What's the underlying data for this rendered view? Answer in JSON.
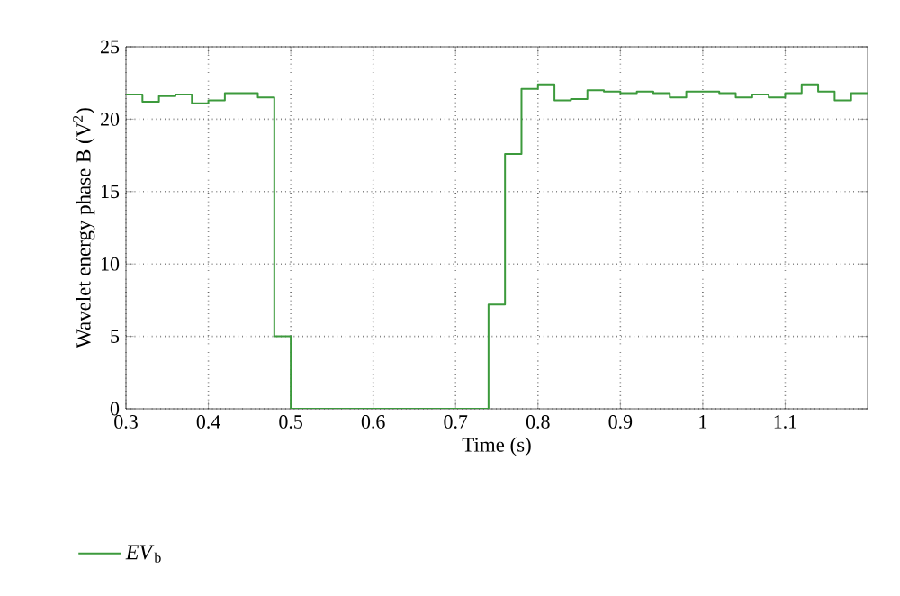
{
  "chart_data": {
    "type": "step",
    "xlabel": "Time (s)",
    "ylabel": "Wavelet energy phase B (V$^{2}$)",
    "x": [
      0.3,
      0.32,
      0.34,
      0.36,
      0.38,
      0.4,
      0.42,
      0.44,
      0.46,
      0.48,
      0.5,
      0.74,
      0.76,
      0.78,
      0.8,
      0.82,
      0.84,
      0.86,
      0.88,
      0.9,
      0.92,
      0.94,
      0.96,
      0.98,
      1.0,
      1.02,
      1.04,
      1.06,
      1.08,
      1.1,
      1.12,
      1.14,
      1.16,
      1.18,
      1.2
    ],
    "series": [
      {
        "name": "*EV*$_{b}$",
        "color": "#3c9a3c",
        "values": [
          21.7,
          21.2,
          21.6,
          21.7,
          21.1,
          21.3,
          21.8,
          21.8,
          21.5,
          5.0,
          0,
          7.2,
          17.6,
          22.1,
          22.4,
          21.3,
          21.4,
          22.0,
          21.9,
          21.8,
          21.9,
          21.8,
          21.5,
          21.9,
          21.9,
          21.8,
          21.5,
          21.7,
          21.5,
          21.8,
          22.4,
          21.9,
          21.3,
          21.8,
          21.8
        ]
      }
    ],
    "xlim": [
      0.3,
      1.2
    ],
    "ylim": [
      0,
      25
    ],
    "xticks": [
      0.3,
      0.4,
      0.5,
      0.6,
      0.7,
      0.8,
      0.9,
      1,
      1.1
    ],
    "yticks": [
      0,
      5,
      10,
      15,
      20,
      25
    ],
    "grid": true,
    "legend": "bottom left",
    "line_style": "solid",
    "marker": "none"
  }
}
